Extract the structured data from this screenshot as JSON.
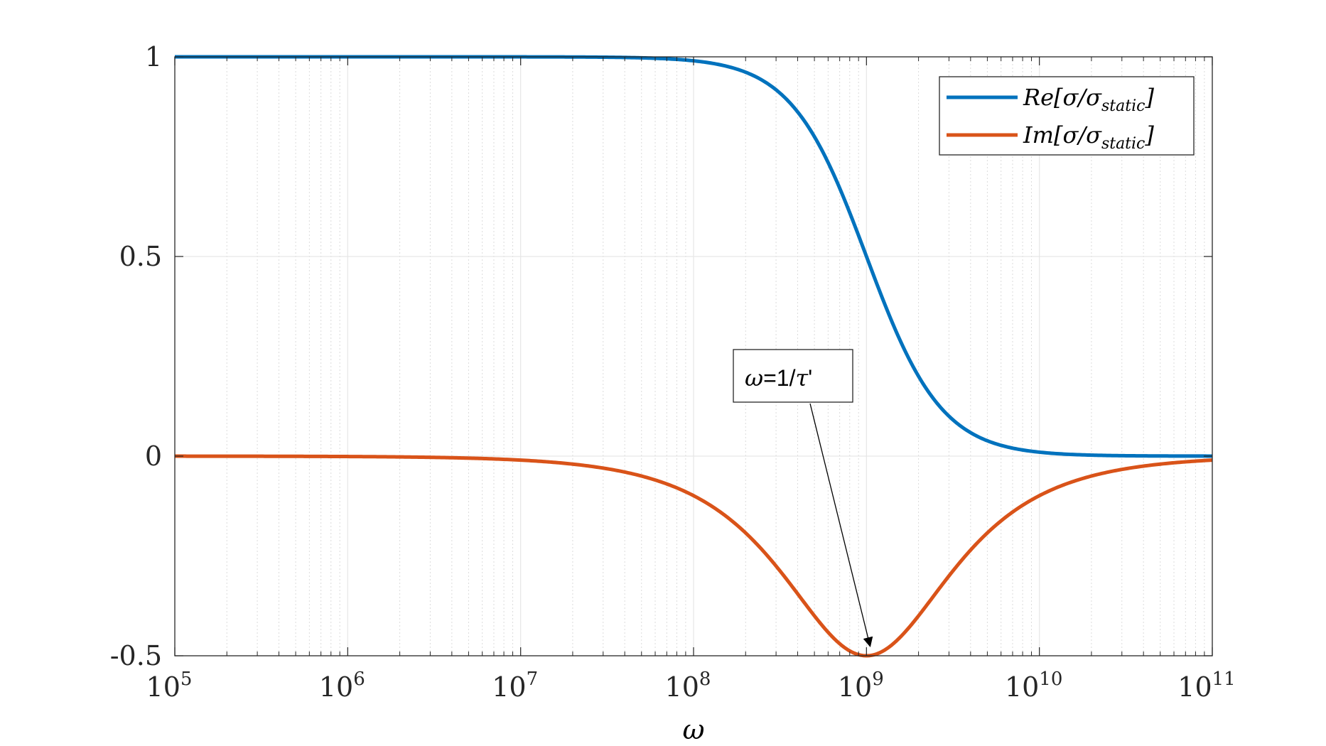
{
  "chart_data": {
    "type": "line",
    "xscale": "log",
    "xlim": [
      100000.0,
      100000000000.0
    ],
    "ylim": [
      -0.5,
      1
    ],
    "grid": true,
    "minor_grid_x": true,
    "xlabel": "ω",
    "ylabel": "",
    "title": "",
    "x_ticks": [
      {
        "base": "10",
        "exp": "5"
      },
      {
        "base": "10",
        "exp": "6"
      },
      {
        "base": "10",
        "exp": "7"
      },
      {
        "base": "10",
        "exp": "8"
      },
      {
        "base": "10",
        "exp": "9"
      },
      {
        "base": "10",
        "exp": "10"
      },
      {
        "base": "10",
        "exp": "11"
      }
    ],
    "y_ticks": [
      "1",
      "0.5",
      "0",
      "-0.5"
    ],
    "legend_position": "top-right",
    "series": [
      {
        "name": "Re[σ/σ_static]",
        "legend_main": "Re[σ/σ",
        "legend_sub": "static",
        "legend_close": "]",
        "color": "#0072BD",
        "x": [
          100000.0,
          1000000.0,
          10000000.0,
          30000000.0,
          100000000.0,
          200000000.0,
          300000000.0,
          500000000.0,
          700000000.0,
          1000000000.0,
          1500000000.0,
          2000000000.0,
          3000000000.0,
          5000000000.0,
          10000000000.0,
          30000000000.0,
          100000000000.0
        ],
        "y": [
          1.0,
          1.0,
          0.9999,
          0.9991,
          0.99,
          0.962,
          0.917,
          0.8,
          0.671,
          0.5,
          0.308,
          0.2,
          0.1,
          0.038,
          0.0099,
          0.0011,
          0.0001
        ]
      },
      {
        "name": "Im[σ/σ_static]",
        "legend_main": "Im[σ/σ",
        "legend_sub": "static",
        "legend_close": "]",
        "color": "#D95319",
        "x": [
          100000.0,
          1000000.0,
          10000000.0,
          30000000.0,
          100000000.0,
          200000000.0,
          300000000.0,
          500000000.0,
          700000000.0,
          1000000000.0,
          1500000000.0,
          2000000000.0,
          3000000000.0,
          5000000000.0,
          10000000000.0,
          30000000000.0,
          100000000000.0
        ],
        "y": [
          -0.0001,
          -0.001,
          -0.01,
          -0.03,
          -0.099,
          -0.192,
          -0.275,
          -0.4,
          -0.47,
          -0.5,
          -0.462,
          -0.4,
          -0.3,
          -0.192,
          -0.099,
          -0.033,
          -0.01
        ]
      }
    ],
    "annotations": [
      {
        "label_symbol": "ω",
        "label_text": "=1/",
        "label_symbol2": "τ",
        "label_suffix": "'",
        "arrow_to": [
          1000000000.0,
          -0.5
        ]
      }
    ]
  }
}
